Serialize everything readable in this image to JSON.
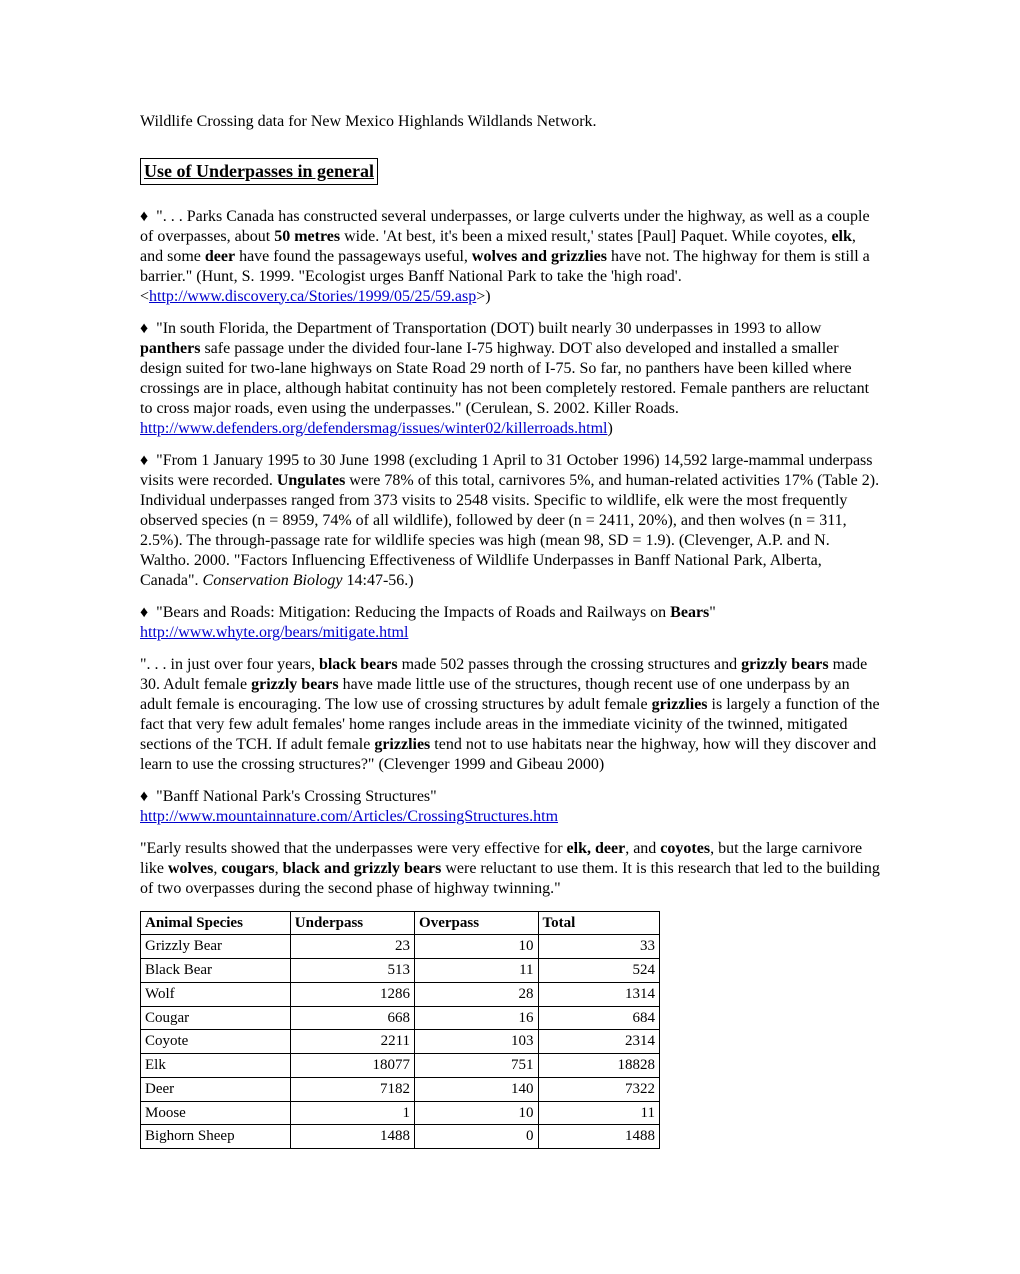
{
  "intro": "Wildlife Crossing data for New Mexico Highlands Wildlands Network.",
  "heading": "Use of Underpasses in general",
  "paragraphs": {
    "p1": {
      "t1": " \". . . Parks Canada has constructed several underpasses, or large culverts under the highway, as well as a couple of overpasses, about ",
      "b_50": "50 metres",
      "t2": " wide.  'At best, it's been a mixed result,' states [Paul] Paquet. While coyotes, ",
      "b_elk": "elk",
      "t3": ", and some ",
      "b_deer": "deer",
      "t4": " have found the passageways useful, ",
      "b_wg": "wolves and grizzlies",
      "t5": " have not.  The highway for them is still a barrier.\" (Hunt, S.  1999. \"Ecologist urges Banff National Park to take the 'high road'. <",
      "link": "http://www.discovery.ca/Stories/1999/05/25/59.asp",
      "t6": ">)"
    },
    "p2": {
      "t1": "  \"In south Florida, the Department of Transportation (DOT) built nearly 30 underpasses in 1993 to allow ",
      "b_panthers": "panthers",
      "t2": " safe passage under the divided four-lane I-75 highway.  DOT also developed and installed a smaller design suited for two-lane highways on State Road 29 north of I-75.  So far, no panthers have been killed where crossings are in place, although habitat continuity has not been completely restored.  Female panthers are reluctant to cross major roads, even using the underpasses.\"  (Cerulean, S.  2002. Killer Roads. ",
      "link": "http://www.defenders.org/defendersmag/issues/winter02/killerroads.html",
      "t3": ")"
    },
    "p3": {
      "t1": " \"From 1 January 1995 to 30 June 1998 (excluding 1 April to 31 October 1996) 14,592 large-mammal underpass visits were recorded. ",
      "b_ung": "Ungulates",
      "t2": " were 78% of this total, carnivores 5%, and human-related activities 17% (Table 2). Individual underpasses ranged from 373 visits to 2548 visits. Specific to wildlife, elk were the most frequently observed species (n = 8959, 74% of all wildlife), followed by deer (n = 2411, 20%), and then wolves (n = 311, 2.5%). The through-passage rate for wildlife species was high (mean 98, SD = 1.9). (Clevenger, A.P. and N. Waltho. 2000. \"Factors Influencing Effectiveness of Wildlife Underpasses in Banff National Park, Alberta, Canada\".  ",
      "i_cb": "Conservation Biology",
      "t3": " 14:47-56.)"
    },
    "p4": {
      "t1": "  \"Bears and Roads: Mitigation: Reducing the Impacts of Roads and Railways on ",
      "b_bears": "Bears",
      "t2": "\"",
      "link": "http://www.whyte.org/bears/mitigate.html"
    },
    "p5": {
      "t1": "\". . . in just over four years, ",
      "b_bb": "black bears",
      "t2": " made 502 passes through the crossing structures and ",
      "b_gb": "grizzly bears",
      "t3": " made 30. Adult female ",
      "b_gb2": "grizzly bears",
      "t4": " have made little use of the structures, though recent use of one underpass by an adult female is encouraging.  The low use of crossing structures by adult female ",
      "b_gz": "grizzlies",
      "t5": " is largely a function of the fact that very few adult females' home ranges include areas in the immediate vicinity of the twinned, mitigated sections of the TCH. If adult female ",
      "b_gz2": "grizzlies",
      "t6": " tend not to use habitats near the highway, how will they discover and learn to use the crossing structures?\" (Clevenger 1999 and Gibeau 2000)"
    },
    "p6": {
      "t1": " \"Banff National Park's Crossing Structures\"",
      "link": "http://www.mountainnature.com/Articles/CrossingStructures.htm"
    },
    "p7": {
      "t1": "\"Early results showed that the underpasses were very effective for ",
      "b_ed": "elk, deer",
      "t2": ", and ",
      "b_coy": "coyotes",
      "t3": ", but the large carnivore like ",
      "b_wolves": "wolves",
      "t4": ", ",
      "b_cougars": "cougars",
      "t5": ", ",
      "b_bgb": "black and grizzly bears",
      "t6": " were reluctant to use them.  It is this research that led to the building of two overpasses during the second phase of highway twinning.\""
    }
  },
  "table": {
    "columns": [
      "Animal Species",
      "Underpass",
      "Overpass",
      "Total"
    ],
    "rows": [
      [
        "Grizzly Bear",
        "23",
        "10",
        "33"
      ],
      [
        "Black Bear",
        "513",
        "11",
        "524"
      ],
      [
        "Wolf",
        "1286",
        "28",
        "1314"
      ],
      [
        "Cougar",
        "668",
        "16",
        "684"
      ],
      [
        "Coyote",
        "2211",
        "103",
        "2314"
      ],
      [
        "Elk",
        "18077",
        "751",
        "18828"
      ],
      [
        "Deer",
        "7182",
        "140",
        "7322"
      ],
      [
        "Moose",
        "1",
        "10",
        "11"
      ],
      [
        "Bighorn Sheep",
        "1488",
        "0",
        "1488"
      ]
    ],
    "col_widths": [
      "150px",
      "120px",
      "120px",
      "120px"
    ]
  },
  "diamond": "♦"
}
